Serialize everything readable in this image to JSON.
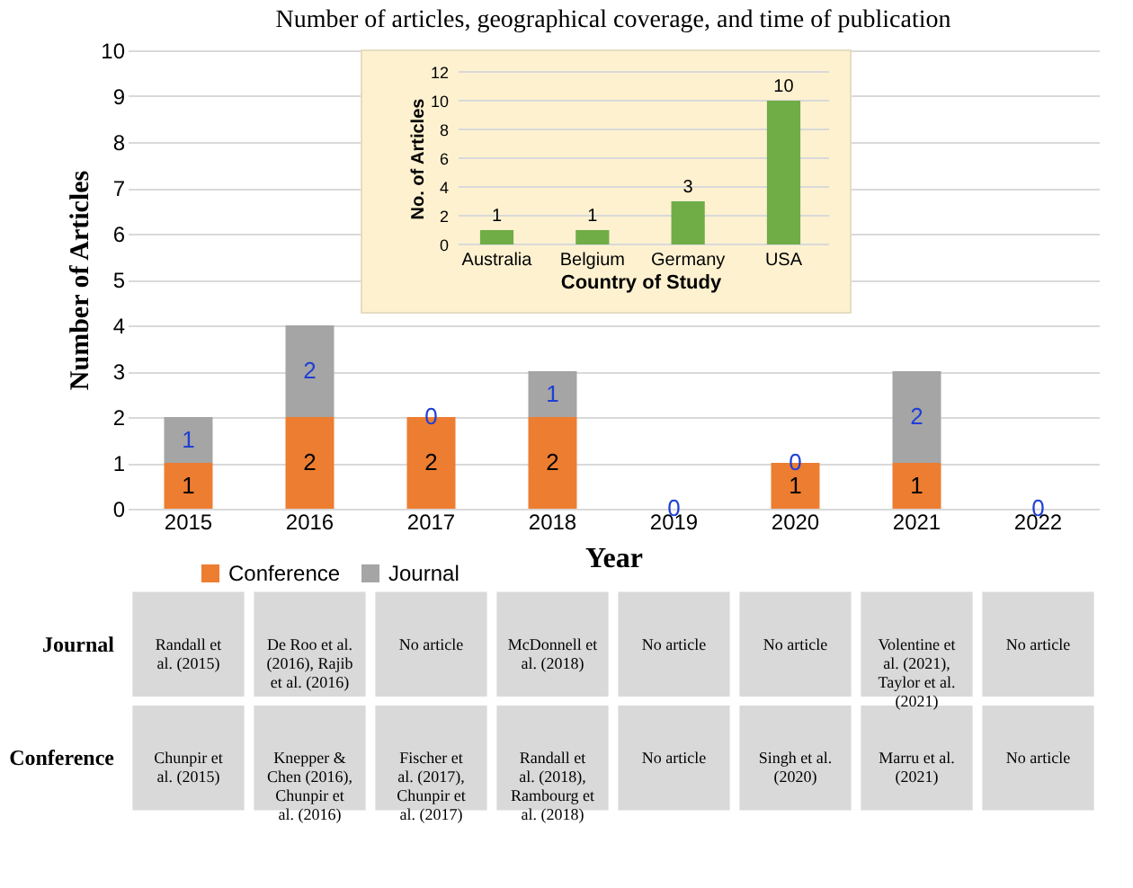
{
  "chart_data": [
    {
      "type": "bar",
      "title": "Number of articles, geographical coverage, and time of publication",
      "xlabel": "Year",
      "ylabel": "Number of Articles",
      "categories": [
        "2015",
        "2016",
        "2017",
        "2018",
        "2019",
        "2020",
        "2021",
        "2022"
      ],
      "stacked": true,
      "ylim": [
        0,
        10
      ],
      "yticks": [
        0,
        1,
        2,
        3,
        4,
        5,
        6,
        7,
        8,
        9,
        10
      ],
      "grid": "y",
      "legend": "bottom",
      "series": [
        {
          "name": "Conference",
          "color": "#ed7d31",
          "values": [
            1,
            2,
            2,
            2,
            0,
            1,
            1,
            0
          ],
          "value_labels": [
            "1",
            "2",
            "2",
            "2",
            null,
            "1",
            "1",
            null
          ]
        },
        {
          "name": "Journal",
          "color": "#a5a5a5",
          "values": [
            1,
            2,
            0,
            1,
            0,
            0,
            2,
            0
          ],
          "value_labels": [
            "1",
            "2",
            "0",
            "1",
            "0",
            "0",
            "2",
            "0"
          ]
        }
      ]
    },
    {
      "type": "bar",
      "xlabel": "Country of Study",
      "ylabel": "No. of Articles",
      "categories": [
        "Australia",
        "Belgium",
        "Germany",
        "USA"
      ],
      "values": [
        1,
        1,
        3,
        10
      ],
      "color": "#70ad47",
      "data_labels": true,
      "ylim": [
        0,
        12
      ],
      "yticks": [
        0,
        2,
        4,
        6,
        8,
        10,
        12
      ],
      "grid": "y"
    },
    {
      "type": "other",
      "y_categories": [
        "Journal",
        "Conference"
      ],
      "cell_labels": [
        [
          "Randall et al. (2015)",
          "De Roo et al. (2016), Rajib et al. (2016)",
          "No article",
          "McDonnell et al. (2018)",
          "No article",
          "No article",
          "Volentine et al. (2021), Taylor et al. (2021)",
          "No article"
        ],
        [
          "Chunpir et al. (2015)",
          "Knepper & Chen (2016), Chunpir et al. (2016)",
          "Fischer et al. (2017), Chunpir et al. (2017)",
          "Randall et al. (2018), Rambourg et al. (2018)",
          "No article",
          "Singh et al. (2020)",
          "Marru et al. (2021)",
          "No article"
        ]
      ]
    }
  ]
}
